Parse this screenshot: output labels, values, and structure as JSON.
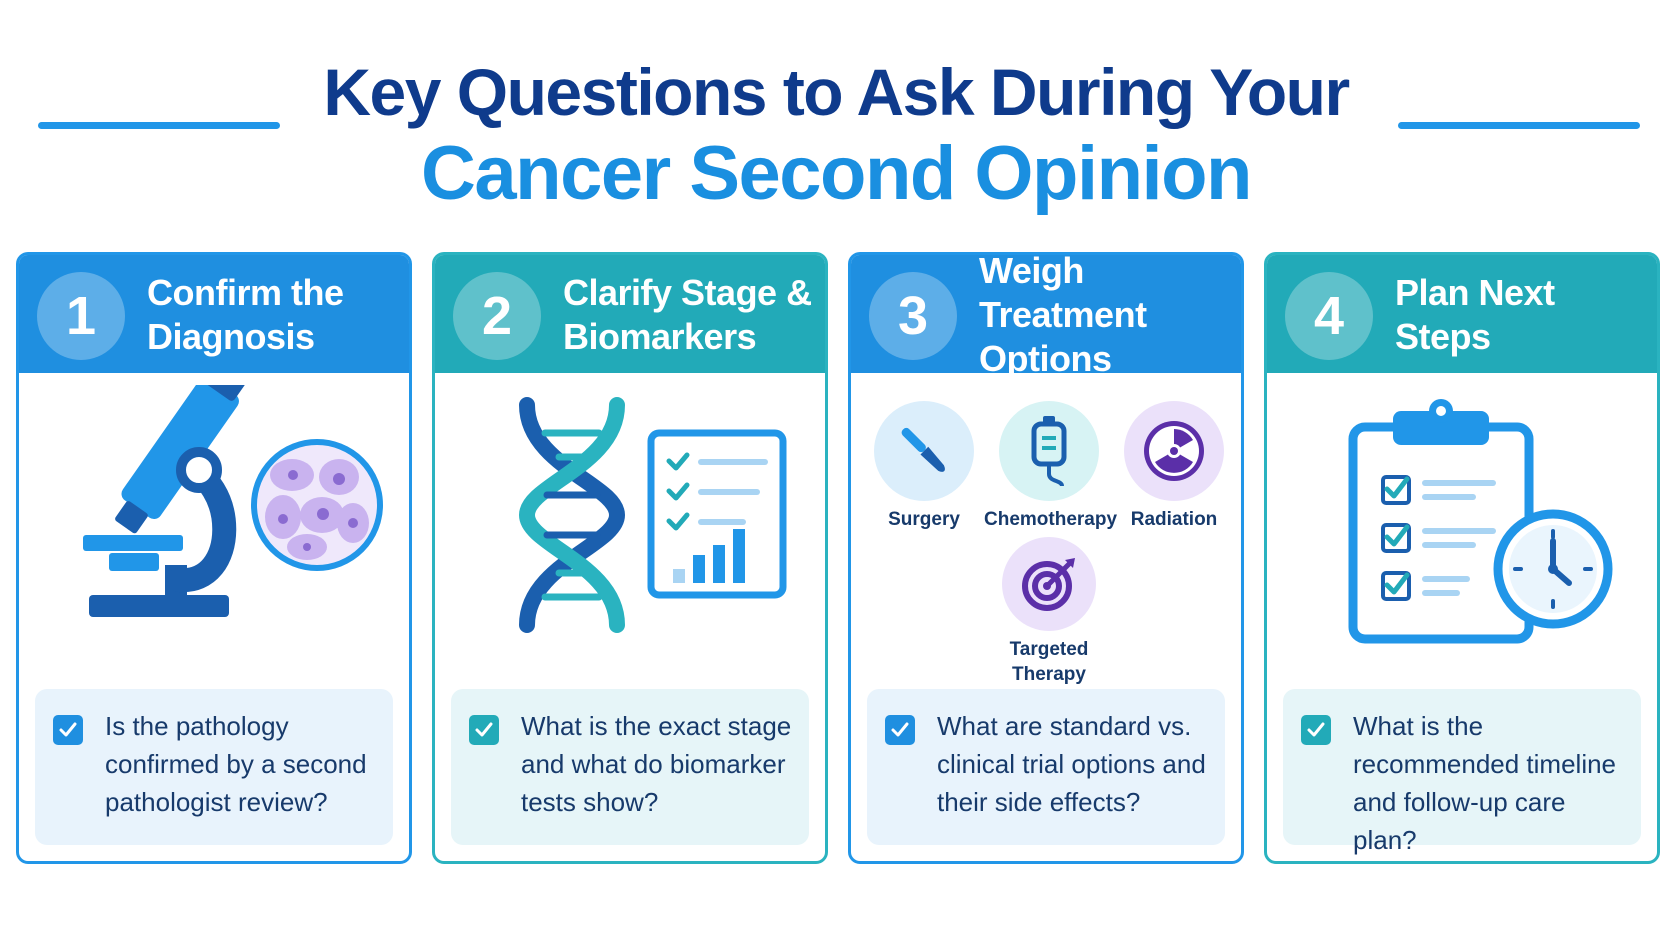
{
  "title": {
    "line1": "Key Questions to Ask During Your",
    "line2": "Cancer Second Opinion"
  },
  "colors": {
    "navy": "#0f3b8c",
    "blue": "#1f8fe0",
    "teal": "#22aab8",
    "text": "#173a6b"
  },
  "cards": [
    {
      "number": "1",
      "title": "Confirm the\nDiagnosis",
      "icons": [
        "microscope-icon",
        "cell-sample-icon"
      ],
      "question": "Is the pathology confirmed by a second pathologist review?"
    },
    {
      "number": "2",
      "title": "Clarify Stage &\nBiomarkers",
      "icons": [
        "dna-icon",
        "report-chart-icon"
      ],
      "question": "What is the exact stage and what do biomarker tests show?"
    },
    {
      "number": "3",
      "title": "Weigh Treatment\nOptions",
      "treatments": [
        "Surgery",
        "Chemotherapy",
        "Radiation",
        "Targeted Therapy"
      ],
      "question": "What are standard vs. clinical trial options and their side effects?"
    },
    {
      "number": "4",
      "title": "Plan Next Steps",
      "icons": [
        "clipboard-checklist-icon",
        "clock-icon"
      ],
      "question": "What is the recommended timeline and follow-up care plan?"
    }
  ]
}
